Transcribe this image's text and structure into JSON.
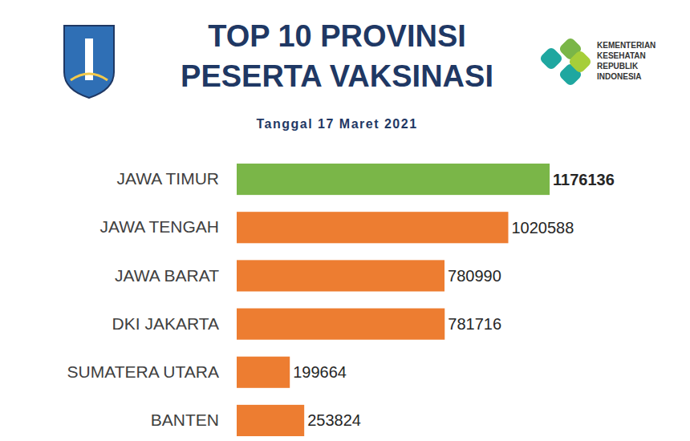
{
  "chart_data": {
    "type": "bar",
    "orientation": "horizontal",
    "title": [
      "TOP 10 PROVINSI",
      "PESERTA VAKSINASI"
    ],
    "subtitle": "Tanggal 17 Maret 2021",
    "annotations": [
      "KEMENTERIAN",
      "KESEHATAN",
      "REPUBLIK",
      "INDONESIA"
    ],
    "categories": [
      "JAWA TIMUR",
      "JAWA TENGAH",
      "JAWA BARAT",
      "DKI JAKARTA",
      "SUMATERA UTARA",
      "BANTEN"
    ],
    "values": [
      1176136,
      1020588,
      780990,
      781716,
      199664,
      253824
    ],
    "colors": [
      "#7ab648",
      "#ed7d31",
      "#ed7d31",
      "#ed7d31",
      "#ed7d31",
      "#ed7d31"
    ],
    "xlim": [
      0,
      1200000
    ],
    "data_labels": true,
    "tick_labels": false,
    "grid": false
  }
}
